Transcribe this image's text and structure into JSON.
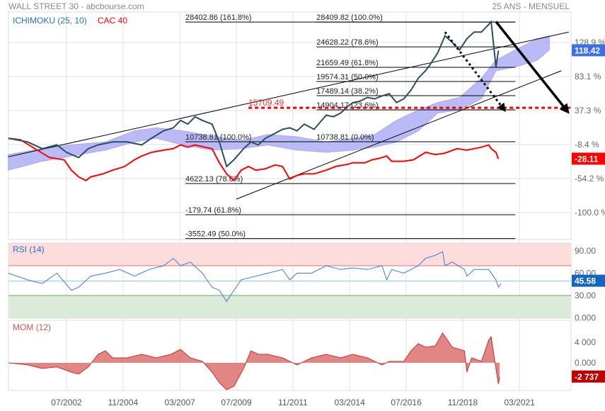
{
  "header": {
    "title": "WALL STREET 30 - abcbourse.com",
    "period": "25 ANS - MENSUEL"
  },
  "colors": {
    "dow": "#2b4f5e",
    "cac": "#ff0000",
    "cloud": "#b3b3f7",
    "rsi": "#3a7bd5",
    "mom": "#d9534f",
    "badge_main": "#3d6fe6",
    "badge_cac": "#ff0000",
    "badge_rsi": "#1565c0",
    "badge_mom": "#c00000"
  },
  "chart_data": [
    {
      "type": "line",
      "title": "WALL STREET 30",
      "legend": [
        {
          "label": "ICHIMOKU (25, 10)",
          "color": "#1f6fd1"
        },
        {
          "label": "CAC 40",
          "color": "#ff0000"
        }
      ],
      "legend_position": "top-left",
      "x_ticks": [
        {
          "label": "07/2002",
          "year": 2002.5
        },
        {
          "label": "11/2004",
          "year": 2004.83
        },
        {
          "label": "03/2007",
          "year": 2007.17
        },
        {
          "label": "07/2009",
          "year": 2009.5
        },
        {
          "label": "11/2011",
          "year": 2011.83
        },
        {
          "label": "03/2014",
          "year": 2014.17
        },
        {
          "label": "07/2016",
          "year": 2016.5
        },
        {
          "label": "11/2018",
          "year": 2018.83
        },
        {
          "label": "03/2021",
          "year": 2021.17
        }
      ],
      "y_unit": "%",
      "ylim": [
        -130,
        170
      ],
      "y_ticks": [
        {
          "label": "128.9 %",
          "v": 128.9
        },
        {
          "label": "83.1 %",
          "v": 83.1
        },
        {
          "label": "37.3 %",
          "v": 37.3
        },
        {
          "label": "-8.4 %",
          "v": -8.4
        },
        {
          "label": "-54.2 %",
          "v": -54.2
        },
        {
          "label": "-100.0 %",
          "v": -100.0
        }
      ],
      "series": [
        {
          "name": "WALL STREET 30",
          "last_label": "118.42",
          "points": [
            [
              2000.1,
              0
            ],
            [
              2000.9,
              -5
            ],
            [
              2001.5,
              -14
            ],
            [
              2002.1,
              -9
            ],
            [
              2002.5,
              -19
            ],
            [
              2003.0,
              -26
            ],
            [
              2003.4,
              -14
            ],
            [
              2003.8,
              -9
            ],
            [
              2004.4,
              -5
            ],
            [
              2005.0,
              -5
            ],
            [
              2005.6,
              -9
            ],
            [
              2006.0,
              0
            ],
            [
              2006.5,
              10
            ],
            [
              2006.9,
              14
            ],
            [
              2007.2,
              24
            ],
            [
              2007.5,
              19
            ],
            [
              2007.8,
              29
            ],
            [
              2008.1,
              24
            ],
            [
              2008.5,
              19
            ],
            [
              2008.8,
              -5
            ],
            [
              2009.1,
              -38
            ],
            [
              2009.4,
              -29
            ],
            [
              2009.8,
              -14
            ],
            [
              2010.1,
              -5
            ],
            [
              2010.4,
              -9
            ],
            [
              2010.7,
              0
            ],
            [
              2011.0,
              5
            ],
            [
              2011.4,
              12
            ],
            [
              2011.7,
              14
            ],
            [
              2012.0,
              10
            ],
            [
              2012.3,
              19
            ],
            [
              2012.7,
              12
            ],
            [
              2013.2,
              31
            ],
            [
              2013.5,
              29
            ],
            [
              2013.8,
              34
            ],
            [
              2014.1,
              43
            ],
            [
              2014.3,
              48
            ],
            [
              2014.6,
              50
            ],
            [
              2014.9,
              55
            ],
            [
              2015.2,
              53
            ],
            [
              2015.5,
              57
            ],
            [
              2015.8,
              60
            ],
            [
              2016.1,
              48
            ],
            [
              2016.4,
              53
            ],
            [
              2016.7,
              65
            ],
            [
              2017.0,
              81
            ],
            [
              2017.3,
              91
            ],
            [
              2017.5,
              100
            ],
            [
              2017.8,
              115
            ],
            [
              2018.1,
              138
            ],
            [
              2018.4,
              129
            ],
            [
              2018.7,
              119
            ],
            [
              2019.0,
              134
            ],
            [
              2019.3,
              143
            ],
            [
              2019.6,
              143
            ],
            [
              2019.9,
              153
            ],
            [
              2020.0,
              157
            ],
            [
              2020.2,
              96
            ],
            [
              2020.3,
              118
            ]
          ]
        },
        {
          "name": "CAC 40",
          "last_label": "-28.11",
          "points": [
            [
              2000.1,
              0
            ],
            [
              2000.6,
              -2
            ],
            [
              2001.2,
              -14
            ],
            [
              2001.8,
              -26
            ],
            [
              2002.4,
              -29
            ],
            [
              2002.7,
              -43
            ],
            [
              2003.0,
              -52
            ],
            [
              2003.3,
              -57
            ],
            [
              2003.5,
              -52
            ],
            [
              2004.0,
              -48
            ],
            [
              2004.4,
              -43
            ],
            [
              2004.9,
              -38
            ],
            [
              2005.3,
              -29
            ],
            [
              2005.6,
              -24
            ],
            [
              2006.0,
              -19
            ],
            [
              2006.5,
              -16
            ],
            [
              2006.9,
              -14
            ],
            [
              2007.2,
              -9
            ],
            [
              2007.5,
              -12
            ],
            [
              2007.8,
              -9
            ],
            [
              2008.2,
              -12
            ],
            [
              2008.5,
              -14
            ],
            [
              2008.8,
              -33
            ],
            [
              2009.1,
              -48
            ],
            [
              2009.4,
              -57
            ],
            [
              2009.7,
              -43
            ],
            [
              2010.0,
              -38
            ],
            [
              2010.3,
              -43
            ],
            [
              2010.7,
              -41
            ],
            [
              2011.1,
              -36
            ],
            [
              2011.4,
              -38
            ],
            [
              2011.7,
              -55
            ],
            [
              2012.0,
              -50
            ],
            [
              2012.3,
              -48
            ],
            [
              2012.7,
              -48
            ],
            [
              2013.2,
              -43
            ],
            [
              2013.6,
              -38
            ],
            [
              2014.1,
              -35
            ],
            [
              2014.3,
              -33
            ],
            [
              2014.8,
              -33
            ],
            [
              2015.1,
              -29
            ],
            [
              2015.4,
              -27
            ],
            [
              2015.7,
              -24
            ],
            [
              2015.9,
              -31
            ],
            [
              2016.4,
              -31
            ],
            [
              2016.8,
              -29
            ],
            [
              2017.3,
              -19
            ],
            [
              2017.7,
              -22
            ],
            [
              2018.1,
              -20
            ],
            [
              2018.6,
              -14
            ],
            [
              2019.0,
              -16
            ],
            [
              2019.3,
              -14
            ],
            [
              2019.6,
              -12
            ],
            [
              2019.9,
              -9
            ],
            [
              2020.0,
              -14
            ],
            [
              2020.2,
              -19
            ],
            [
              2020.3,
              -28
            ]
          ]
        }
      ],
      "ichimoku_cloud": [
        [
          2000.1,
          -22,
          -43
        ],
        [
          2001.5,
          -14,
          -31
        ],
        [
          2002.7,
          -9,
          -24
        ],
        [
          2004.1,
          -5,
          -16
        ],
        [
          2005.3,
          10,
          -5
        ],
        [
          2006.2,
          14,
          0
        ],
        [
          2007.3,
          10,
          -9
        ],
        [
          2008.5,
          3,
          -16
        ],
        [
          2009.7,
          -3,
          -14
        ],
        [
          2010.8,
          5,
          -9
        ],
        [
          2012.0,
          2,
          -16
        ],
        [
          2013.2,
          -5,
          -19
        ],
        [
          2014.3,
          0,
          -16
        ],
        [
          2015.2,
          5,
          -12
        ],
        [
          2016.1,
          24,
          -5
        ],
        [
          2017.0,
          38,
          10
        ],
        [
          2017.8,
          48,
          34
        ],
        [
          2018.7,
          55,
          38
        ],
        [
          2019.6,
          81,
          53
        ],
        [
          2020.2,
          105,
          91
        ],
        [
          2021.0,
          119,
          96
        ],
        [
          2021.9,
          134,
          105
        ],
        [
          2022.4,
          138,
          119
        ]
      ],
      "fibonacci": [
        {
          "label": "28402.86  (161.8%)",
          "v": 156.5,
          "from": 2007.4
        },
        {
          "label": "10738.81  (100.0%)",
          "v": -4.7,
          "from": 2007.4
        },
        {
          "label": "4622.13  (78.6%)",
          "v": -61,
          "from": 2007.4
        },
        {
          "label": "-179.74  (61.8%)",
          "v": -103,
          "from": 2007.4
        },
        {
          "label": "-3552.49  (50.0%)",
          "v": -135,
          "from": 2007.4
        },
        {
          "label": "28409.82  (100.0%)",
          "v": 156.5,
          "from": 2012.8
        },
        {
          "label": "24628.22  (78.6%)",
          "v": 123,
          "from": 2012.8
        },
        {
          "label": "21659.49  (61.8%)",
          "v": 95.5,
          "from": 2012.8
        },
        {
          "label": "19574.31  (50.0%)",
          "v": 76.4,
          "from": 2012.8
        },
        {
          "label": "17489.14  (38.2%)",
          "v": 57.3,
          "from": 2012.8
        },
        {
          "label": "14904.17  (23.6%)",
          "v": 38.3,
          "from": 2012.8
        },
        {
          "label": "10738.81  (0.0%)",
          "v": -4.7,
          "from": 2012.8
        }
      ],
      "fib_end": 2021.0,
      "target_line": {
        "label": "15709.49",
        "v": 41,
        "from": 2010.0
      },
      "trend_lines": [
        {
          "from": [
            2000.1,
            -25
          ],
          "to": [
            2023.2,
            143
          ]
        },
        {
          "from": [
            2009.5,
            -82
          ],
          "to": [
            2022.9,
            91
          ]
        }
      ],
      "arrows": [
        {
          "style": "solid",
          "from": [
            2020.2,
            157
          ],
          "to": [
            2023.1,
            38
          ]
        },
        {
          "style": "dotted",
          "from": [
            2018.1,
            143
          ],
          "to": [
            2020.5,
            40
          ]
        }
      ]
    },
    {
      "type": "line",
      "title": "RSI (14)",
      "ylim": [
        0,
        100
      ],
      "y_ticks": [
        {
          "label": "90.00",
          "v": 90
        },
        {
          "label": "60.00",
          "v": 60
        },
        {
          "label": "30.00",
          "v": 30
        },
        {
          "label": "0.000",
          "v": 0
        }
      ],
      "overbought": 70,
      "oversold": 30,
      "last_label": "45.58",
      "last_value": 45.58,
      "points": [
        [
          2000.1,
          60
        ],
        [
          2000.9,
          51
        ],
        [
          2001.5,
          46
        ],
        [
          2002.1,
          60
        ],
        [
          2002.7,
          37
        ],
        [
          2003.0,
          41
        ],
        [
          2003.5,
          56
        ],
        [
          2004.1,
          60
        ],
        [
          2004.7,
          65
        ],
        [
          2005.3,
          56
        ],
        [
          2005.9,
          65
        ],
        [
          2006.5,
          70
        ],
        [
          2006.9,
          80
        ],
        [
          2007.2,
          70
        ],
        [
          2007.6,
          75
        ],
        [
          2008.1,
          60
        ],
        [
          2008.5,
          41
        ],
        [
          2008.8,
          37
        ],
        [
          2009.1,
          22
        ],
        [
          2009.4,
          37
        ],
        [
          2009.7,
          51
        ],
        [
          2010.3,
          56
        ],
        [
          2010.8,
          60
        ],
        [
          2011.4,
          65
        ],
        [
          2011.7,
          51
        ],
        [
          2012.0,
          60
        ],
        [
          2012.6,
          60
        ],
        [
          2013.2,
          70
        ],
        [
          2013.8,
          65
        ],
        [
          2014.3,
          67
        ],
        [
          2014.9,
          65
        ],
        [
          2015.5,
          70
        ],
        [
          2015.7,
          51
        ],
        [
          2015.9,
          65
        ],
        [
          2016.4,
          60
        ],
        [
          2017.0,
          70
        ],
        [
          2017.3,
          80
        ],
        [
          2017.7,
          84
        ],
        [
          2018.0,
          89
        ],
        [
          2018.1,
          70
        ],
        [
          2018.4,
          75
        ],
        [
          2018.9,
          65
        ],
        [
          2019.0,
          56
        ],
        [
          2019.3,
          65
        ],
        [
          2019.9,
          65
        ],
        [
          2020.2,
          51
        ],
        [
          2020.3,
          41
        ],
        [
          2020.4,
          46
        ]
      ]
    },
    {
      "type": "area",
      "title": "MOM (12)",
      "ylim": [
        -5500,
        6500
      ],
      "y_ticks": [
        {
          "label": "4 000",
          "v": 4000
        },
        {
          "label": "0.000",
          "v": 0
        }
      ],
      "last_label": "-2 737",
      "points": [
        [
          2000.1,
          0
        ],
        [
          2000.9,
          -400
        ],
        [
          2001.5,
          -1100
        ],
        [
          2002.1,
          -800
        ],
        [
          2002.7,
          -1800
        ],
        [
          2003.0,
          -2200
        ],
        [
          2003.4,
          -800
        ],
        [
          2003.8,
          1650
        ],
        [
          2004.1,
          2350
        ],
        [
          2004.4,
          970
        ],
        [
          2005.0,
          970
        ],
        [
          2005.6,
          1650
        ],
        [
          2006.2,
          970
        ],
        [
          2006.8,
          1650
        ],
        [
          2007.2,
          2600
        ],
        [
          2007.6,
          970
        ],
        [
          2008.1,
          280
        ],
        [
          2008.5,
          -1800
        ],
        [
          2008.8,
          -3860
        ],
        [
          2009.1,
          -5240
        ],
        [
          2009.4,
          -4550
        ],
        [
          2009.8,
          -1100
        ],
        [
          2010.1,
          2350
        ],
        [
          2010.4,
          1650
        ],
        [
          2010.8,
          1650
        ],
        [
          2011.4,
          970
        ],
        [
          2012.0,
          -400
        ],
        [
          2012.6,
          970
        ],
        [
          2013.2,
          1650
        ],
        [
          2013.8,
          970
        ],
        [
          2014.3,
          1650
        ],
        [
          2014.9,
          970
        ],
        [
          2015.5,
          -400
        ],
        [
          2015.8,
          280
        ],
        [
          2016.4,
          280
        ],
        [
          2016.7,
          2350
        ],
        [
          2017.0,
          3720
        ],
        [
          2017.3,
          3030
        ],
        [
          2017.7,
          3310
        ],
        [
          2018.0,
          5800
        ],
        [
          2018.4,
          3030
        ],
        [
          2018.9,
          2350
        ],
        [
          2019.0,
          -1800
        ],
        [
          2019.2,
          970
        ],
        [
          2019.6,
          280
        ],
        [
          2019.9,
          4400
        ],
        [
          2020.0,
          5100
        ],
        [
          2020.2,
          -1100
        ],
        [
          2020.3,
          -4140
        ],
        [
          2020.35,
          -2737
        ]
      ]
    }
  ]
}
